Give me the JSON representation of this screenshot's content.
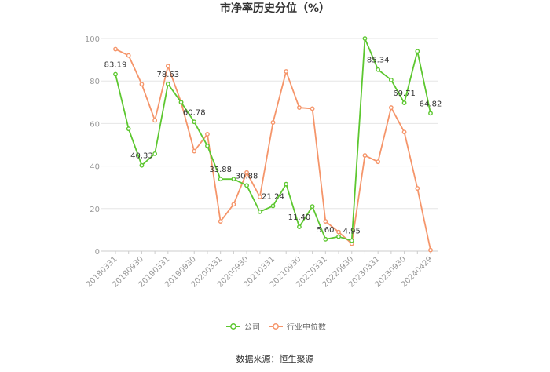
{
  "chart_data": {
    "type": "line",
    "title": "市净率历史分位（%）",
    "ylim": [
      0,
      100
    ],
    "yticks": [
      0,
      20,
      40,
      60,
      80,
      100
    ],
    "grid": true,
    "legend_position": "bottom-center",
    "categories": [
      "20180331",
      "20180630",
      "20180930",
      "20181231",
      "20190331",
      "20190630",
      "20190930",
      "20191231",
      "20200331",
      "20200630",
      "20200930",
      "20201231",
      "20210331",
      "20210630",
      "20210930",
      "20211231",
      "20220331",
      "20220630",
      "20220930",
      "20221231",
      "20230331",
      "20230630",
      "20230930",
      "20231231",
      "20240429"
    ],
    "xtick_labels": [
      "20180331",
      "20180930",
      "20190331",
      "20190930",
      "20200331",
      "20200930",
      "20210331",
      "20210930",
      "20220331",
      "20220930",
      "20230331",
      "20230930",
      "20240429"
    ],
    "series": [
      {
        "name": "公司",
        "color": "#5dc730",
        "values": [
          83.19,
          57.5,
          40.33,
          45.8,
          78.63,
          70.0,
          60.78,
          49.5,
          33.88,
          33.88,
          30.88,
          18.5,
          21.24,
          31.5,
          11.4,
          21.0,
          5.6,
          6.8,
          4.95,
          100.0,
          85.34,
          80.5,
          69.71,
          94.0,
          64.82
        ],
        "data_labels": [
          {
            "index": 0,
            "text": "83.19"
          },
          {
            "index": 2,
            "text": "40.33"
          },
          {
            "index": 4,
            "text": "78.63"
          },
          {
            "index": 6,
            "text": "60.78"
          },
          {
            "index": 8,
            "text": "33.88"
          },
          {
            "index": 10,
            "text": "30.88"
          },
          {
            "index": 12,
            "text": "21.24"
          },
          {
            "index": 14,
            "text": "11.40"
          },
          {
            "index": 16,
            "text": "5.60"
          },
          {
            "index": 18,
            "text": "4.95"
          },
          {
            "index": 20,
            "text": "85.34"
          },
          {
            "index": 22,
            "text": "69.71"
          },
          {
            "index": 24,
            "text": "64.82"
          }
        ]
      },
      {
        "name": "行业中位数",
        "color": "#f5956a",
        "values": [
          95.0,
          92.0,
          78.5,
          61.5,
          87.0,
          70.0,
          47.0,
          55.0,
          14.0,
          22.0,
          37.0,
          25.5,
          60.5,
          84.5,
          67.5,
          67.0,
          14.0,
          9.0,
          3.5,
          45.0,
          42.0,
          67.5,
          56.0,
          29.5,
          0.5
        ]
      }
    ]
  },
  "source": "数据来源：恒生聚源"
}
